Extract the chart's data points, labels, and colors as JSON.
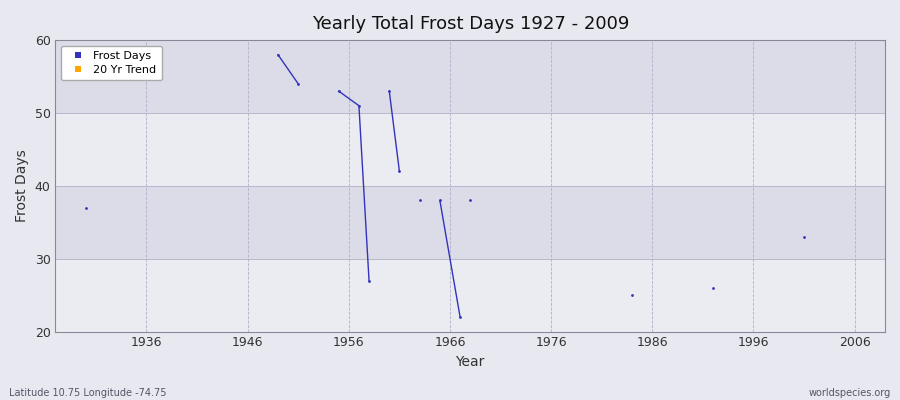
{
  "title": "Yearly Total Frost Days 1927 - 2009",
  "xlabel": "Year",
  "ylabel": "Frost Days",
  "xlim": [
    1927,
    2009
  ],
  "ylim": [
    20,
    60
  ],
  "yticks": [
    20,
    30,
    40,
    50,
    60
  ],
  "xticks": [
    1936,
    1946,
    1956,
    1966,
    1976,
    1986,
    1996,
    2006
  ],
  "segments": [
    {
      "x": [
        1930
      ],
      "y": [
        37
      ]
    },
    {
      "x": [
        1949,
        1951
      ],
      "y": [
        58,
        54
      ]
    },
    {
      "x": [
        1955,
        1957,
        1958
      ],
      "y": [
        53,
        51,
        27
      ]
    },
    {
      "x": [
        1960,
        1961
      ],
      "y": [
        53,
        42
      ]
    },
    {
      "x": [
        1963
      ],
      "y": [
        38
      ]
    },
    {
      "x": [
        1965,
        1967
      ],
      "y": [
        38,
        22
      ]
    },
    {
      "x": [
        1968
      ],
      "y": [
        38
      ]
    },
    {
      "x": [
        1984
      ],
      "y": [
        25
      ]
    },
    {
      "x": [
        1992
      ],
      "y": [
        26
      ]
    },
    {
      "x": [
        2001
      ],
      "y": [
        33
      ]
    }
  ],
  "frost_color": "#3333bb",
  "trend_color": "#ffa500",
  "fig_bg_color": "#e8e8f0",
  "plot_bg_light": "#ebebf2",
  "plot_bg_dark": "#dcdce8",
  "grid_color": "#b0b0c8",
  "spine_color": "#888899",
  "bottom_label_left": "Latitude 10.75 Longitude -74.75",
  "bottom_label_right": "worldspecies.org",
  "legend_frost": "Frost Days",
  "legend_trend": "20 Yr Trend",
  "title_fontsize": 13,
  "axis_label_fontsize": 10,
  "tick_fontsize": 9,
  "legend_fontsize": 8
}
